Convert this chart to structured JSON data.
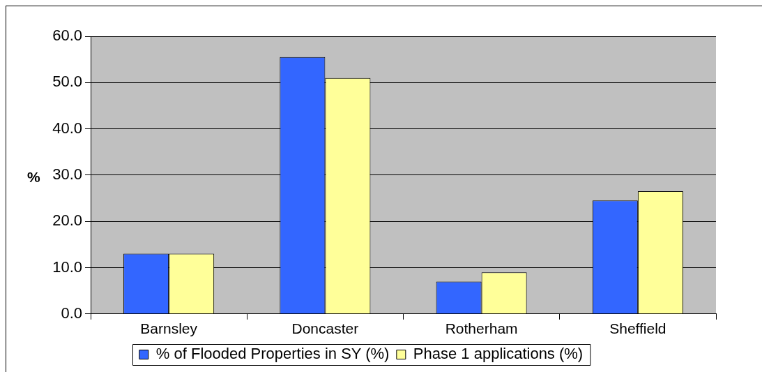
{
  "chart_data": {
    "type": "bar",
    "categories": [
      "Barnsley",
      "Doncaster",
      "Rotherham",
      "Sheffield"
    ],
    "series": [
      {
        "name": "% of Flooded Properties in SY (%)",
        "color": "#3366ff",
        "values": [
          13,
          55.5,
          7,
          24.5
        ]
      },
      {
        "name": "Phase 1 applications (%)",
        "color": "#ffff99",
        "values": [
          13,
          51,
          9,
          26.5
        ]
      }
    ],
    "ylabel": "%",
    "ylim": [
      0,
      60
    ],
    "yticks": [
      {
        "value": 0,
        "label": "0.0"
      },
      {
        "value": 10,
        "label": "10.0"
      },
      {
        "value": 20,
        "label": "20.0"
      },
      {
        "value": 30,
        "label": "30.0"
      },
      {
        "value": 40,
        "label": "40.0"
      },
      {
        "value": 50,
        "label": "50.0"
      },
      {
        "value": 60,
        "label": "60.0"
      }
    ],
    "grid": "y",
    "legend": "bottom"
  }
}
